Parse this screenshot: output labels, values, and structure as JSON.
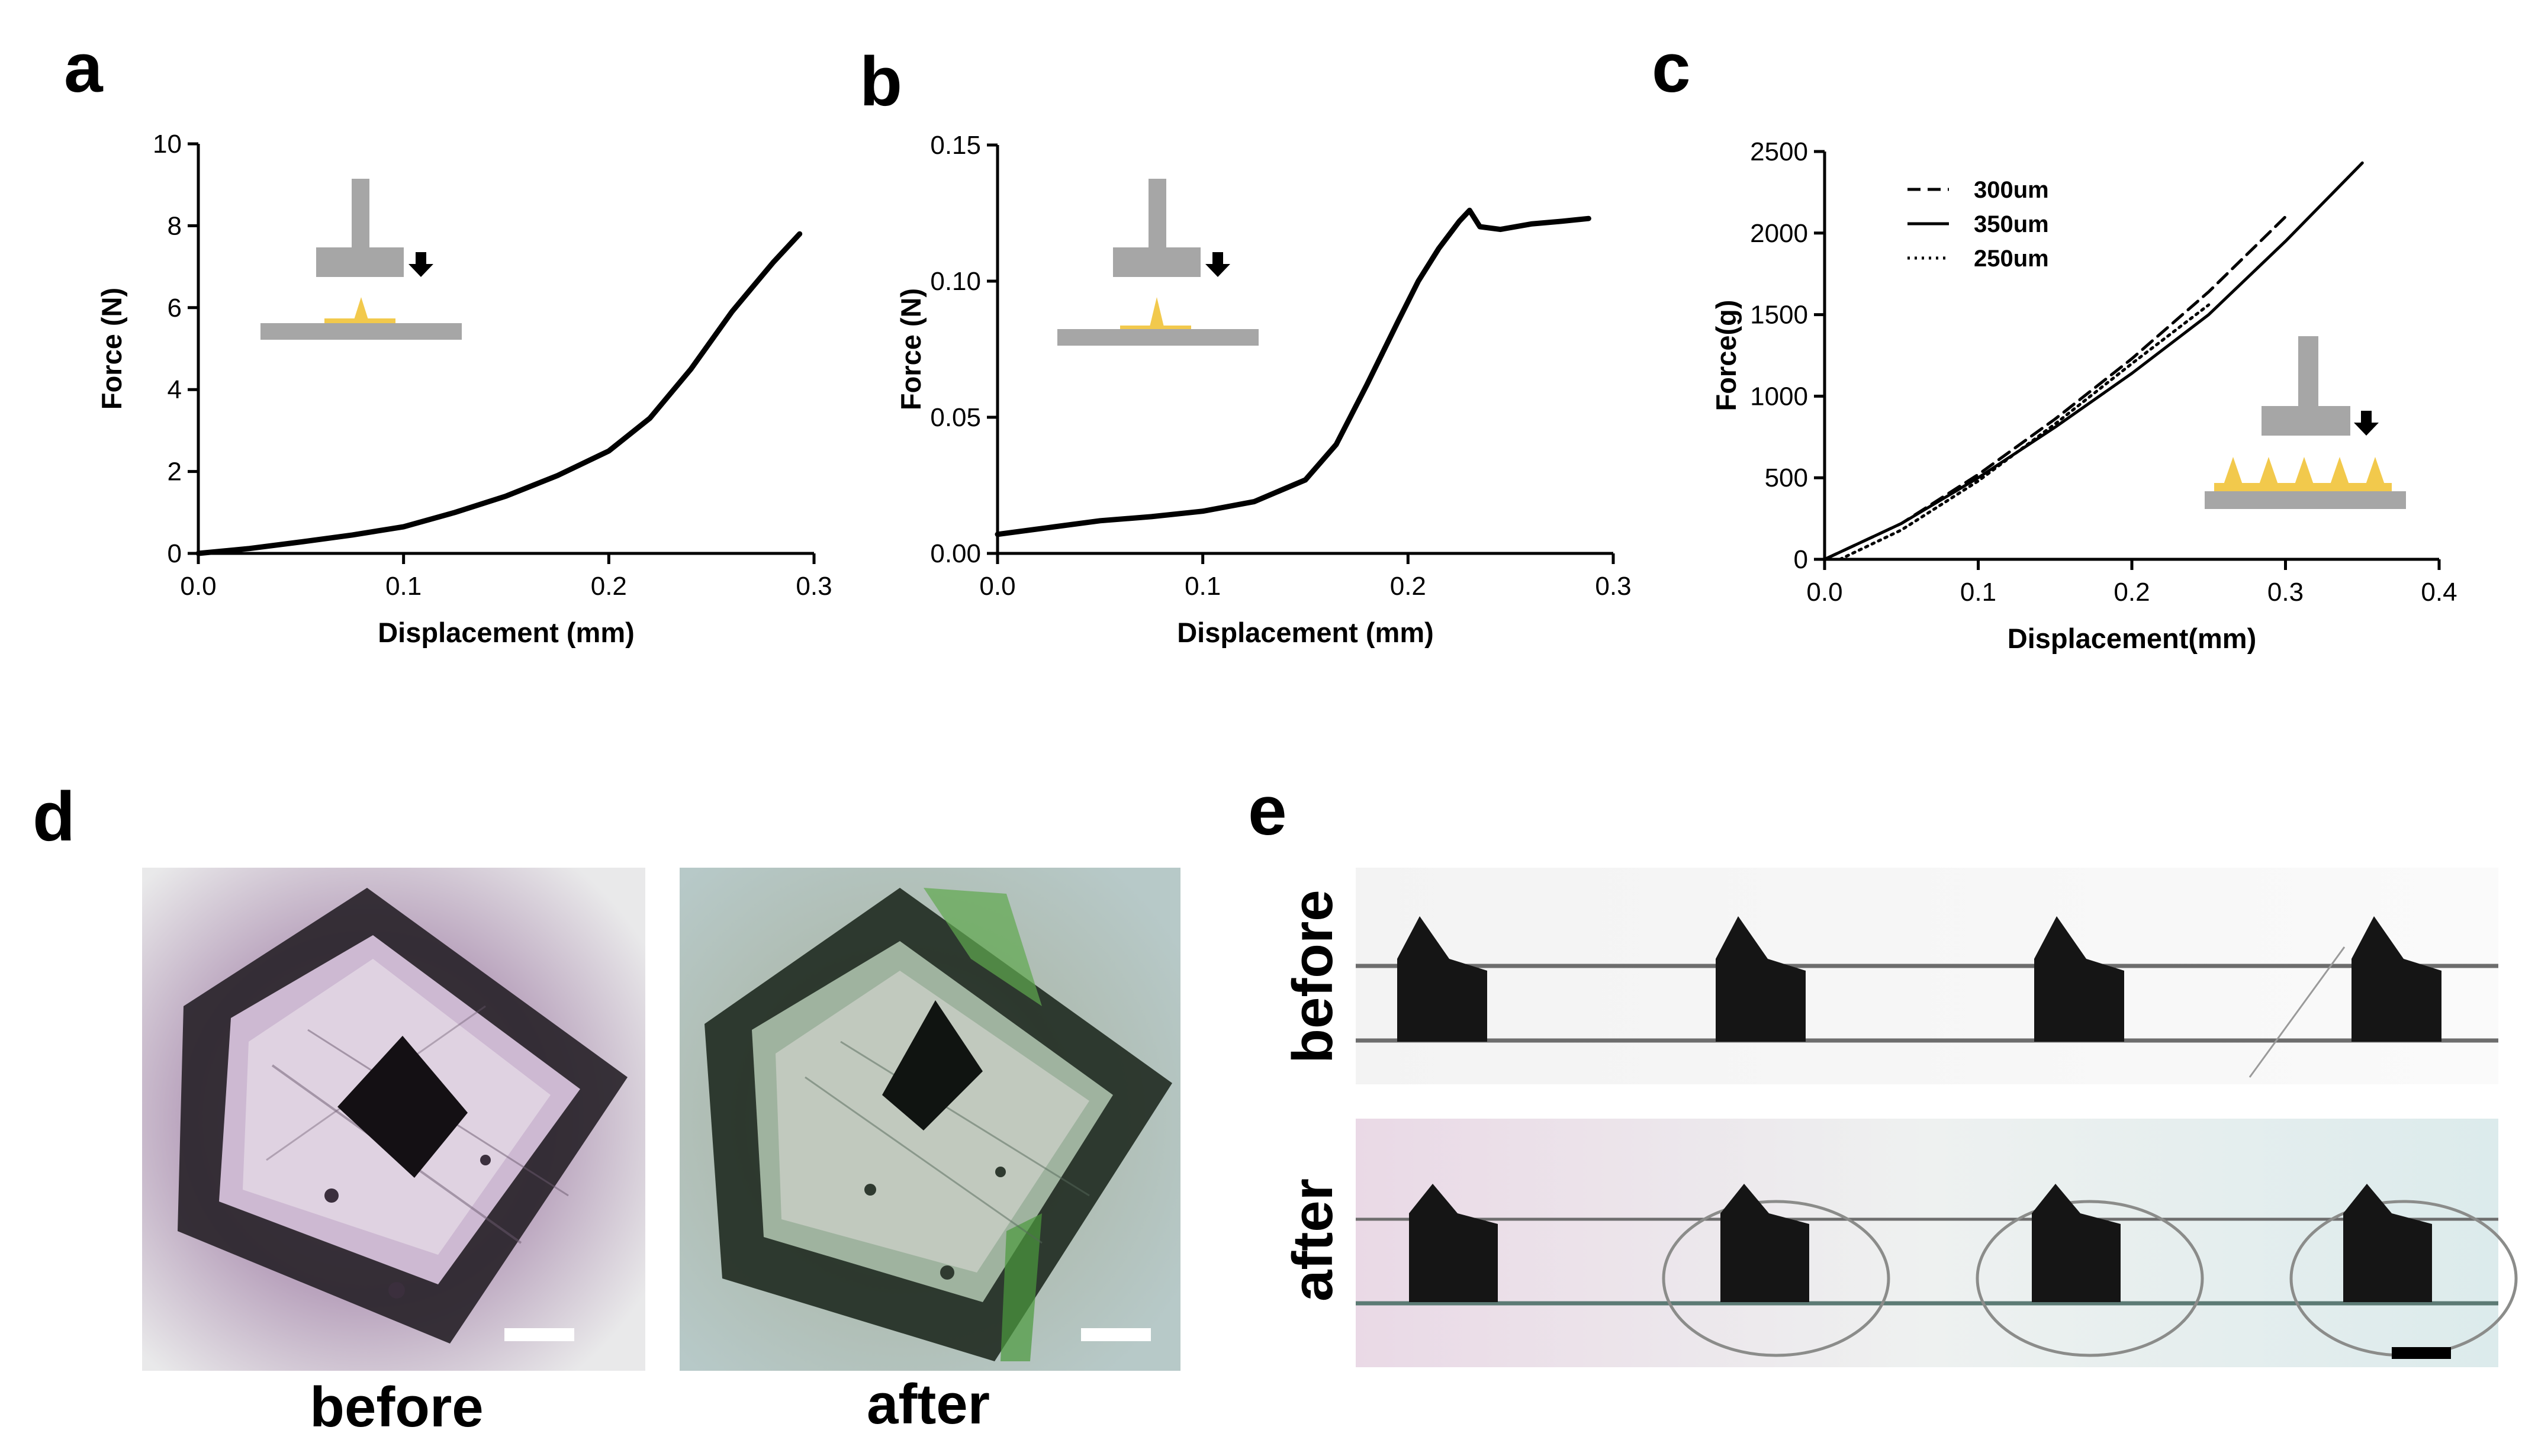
{
  "panels": {
    "a": "a",
    "b": "b",
    "c": "c",
    "d": "d",
    "e": "e"
  },
  "colors": {
    "platform": "#a6a6a6",
    "needle": "#f2c94c",
    "line": "#000000"
  },
  "chart_data": [
    {
      "panel": "a",
      "type": "line",
      "xlabel": "Displacement (mm)",
      "ylabel": "Force (N)",
      "xlim": [
        0,
        0.3
      ],
      "ylim": [
        0,
        10
      ],
      "xticks": [
        "0.0",
        "0.1",
        "0.2",
        "0.3"
      ],
      "yticks": [
        "0",
        "2",
        "4",
        "6",
        "8",
        "10"
      ],
      "grid": false,
      "series": [
        {
          "x": [
            0,
            0.025,
            0.05,
            0.075,
            0.1,
            0.125,
            0.15,
            0.175,
            0.2,
            0.22,
            0.24,
            0.26,
            0.28,
            0.293
          ],
          "y": [
            0,
            0.12,
            0.28,
            0.45,
            0.65,
            1.0,
            1.4,
            1.9,
            2.5,
            3.3,
            4.5,
            5.9,
            7.1,
            7.8
          ],
          "style": "solid"
        }
      ]
    },
    {
      "panel": "b",
      "type": "line",
      "xlabel": "Displacement (mm)",
      "ylabel": "Force (N)",
      "xlim": [
        0,
        0.3
      ],
      "ylim": [
        0,
        0.15
      ],
      "xticks": [
        "0.0",
        "0.1",
        "0.2",
        "0.3"
      ],
      "yticks": [
        "0.00",
        "0.05",
        "0.10",
        "0.15"
      ],
      "grid": false,
      "series": [
        {
          "x": [
            0,
            0.025,
            0.05,
            0.075,
            0.1,
            0.125,
            0.15,
            0.165,
            0.18,
            0.195,
            0.205,
            0.215,
            0.225,
            0.23,
            0.235,
            0.245,
            0.26,
            0.275,
            0.288
          ],
          "y": [
            0.007,
            0.0095,
            0.012,
            0.0135,
            0.0155,
            0.019,
            0.027,
            0.04,
            0.062,
            0.085,
            0.1,
            0.112,
            0.122,
            0.126,
            0.12,
            0.119,
            0.121,
            0.122,
            0.123
          ],
          "style": "solid"
        }
      ]
    },
    {
      "panel": "c",
      "type": "line",
      "xlabel": "Displacement(mm)",
      "ylabel": "Force(g)",
      "xlim": [
        0,
        0.4
      ],
      "ylim": [
        0,
        2500
      ],
      "xticks": [
        "0.0",
        "0.1",
        "0.2",
        "0.3",
        "0.4"
      ],
      "yticks": [
        "0",
        "500",
        "1000",
        "1500",
        "2000",
        "2500"
      ],
      "grid": false,
      "legend_position": "top-left",
      "series": [
        {
          "name": "300um",
          "style": "dashed",
          "x": [
            0,
            0.05,
            0.1,
            0.15,
            0.2,
            0.25,
            0.3
          ],
          "y": [
            0,
            220,
            520,
            860,
            1230,
            1640,
            2100
          ]
        },
        {
          "name": "350um",
          "style": "solid",
          "x": [
            0,
            0.05,
            0.1,
            0.15,
            0.2,
            0.25,
            0.3,
            0.35
          ],
          "y": [
            0,
            220,
            500,
            810,
            1140,
            1500,
            1950,
            2430
          ]
        },
        {
          "name": "250um",
          "style": "dotted",
          "x": [
            0.01,
            0.05,
            0.1,
            0.15,
            0.2,
            0.25
          ],
          "y": [
            0,
            180,
            480,
            830,
            1200,
            1560
          ]
        }
      ]
    }
  ],
  "photos": {
    "d_before_label": "before",
    "d_after_label": "after",
    "e_before_label": "before",
    "e_after_label": "after"
  }
}
